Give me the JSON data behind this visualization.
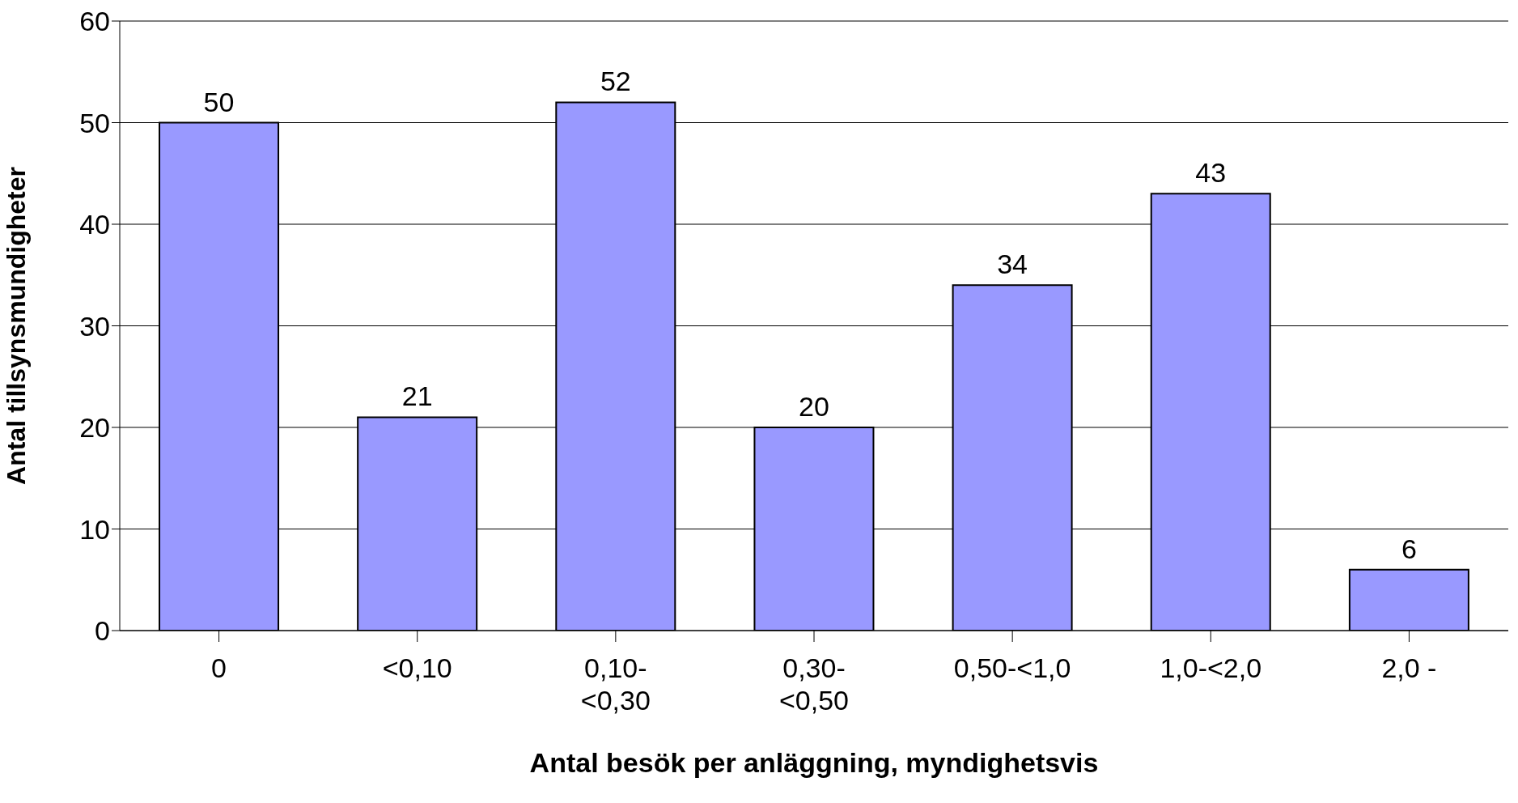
{
  "chart_data": {
    "type": "bar",
    "xlabel": "Antal besök per anläggning, myndighetsvis",
    "ylabel": "Antal tillsynsmundigheter",
    "categories": [
      "0",
      "<0,10",
      "0,10-<0,30",
      "0,30-<0,50",
      "0,50-<1,0",
      "1,0-<2,0",
      "2,0 -"
    ],
    "values": [
      50,
      21,
      52,
      20,
      34,
      43,
      6
    ],
    "color": "#9999ff",
    "ylim": [
      0,
      60
    ],
    "yticks": [
      0,
      10,
      20,
      30,
      40,
      50,
      60
    ],
    "grid": "y",
    "data_labels": true
  }
}
